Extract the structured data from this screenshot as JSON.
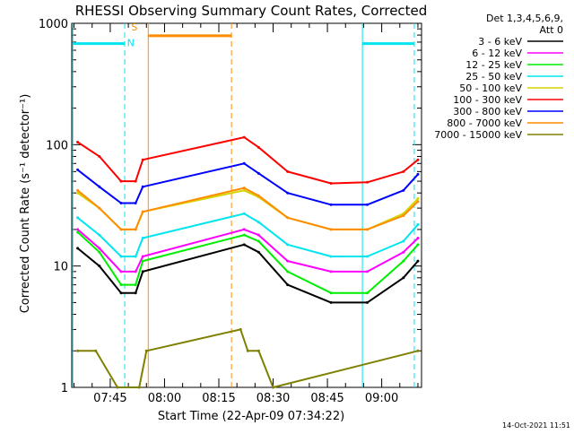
{
  "chart_data": {
    "type": "line",
    "title": "RHESSI Observing Summary Count Rates, Corrected",
    "xlabel": "Start Time (22-Apr-09 07:34:22)",
    "ylabel": "Corrected Count Rate (s⁻¹ detector⁻¹)",
    "y_scale": "log",
    "ylim": [
      1,
      1000
    ],
    "xlim": [
      "07:34:22",
      "09:11:00"
    ],
    "x_ticks": [
      "07:45",
      "08:00",
      "08:15",
      "08:30",
      "08:45",
      "09:00"
    ],
    "y_ticks": [
      "1",
      "10",
      "100",
      "1000"
    ],
    "legend_header": [
      "Det 1,3,4,5,6,9,",
      "Att 0"
    ],
    "legend_position": "top-right",
    "footer_date": "14-Oct-2021 11:51",
    "markers": [
      {
        "label": "N",
        "color": "#00e5ee"
      },
      {
        "label": "S",
        "color": "#ff8c00"
      }
    ],
    "colors": {
      "background": "#ffffff",
      "axes": "#000000",
      "night": "#00e5ee",
      "saa": "#ff8c00"
    },
    "series": [
      {
        "name": "3 - 6 keV",
        "color": "#000000",
        "x": [
          "07:36",
          "07:42",
          "07:48",
          "07:52",
          "07:54",
          "08:22",
          "08:26",
          "08:34",
          "08:46",
          "08:56",
          "09:06",
          "09:10"
        ],
        "y": [
          14,
          10,
          6,
          6,
          9,
          15,
          13,
          7,
          5,
          5,
          8,
          11
        ]
      },
      {
        "name": "6 - 12 keV",
        "color": "#ff00ff",
        "x": [
          "07:36",
          "07:42",
          "07:48",
          "07:52",
          "07:54",
          "08:22",
          "08:26",
          "08:34",
          "08:46",
          "08:56",
          "09:06",
          "09:10"
        ],
        "y": [
          20,
          14,
          9,
          9,
          12,
          20,
          18,
          11,
          9,
          9,
          13,
          17
        ]
      },
      {
        "name": "12 - 25 keV",
        "color": "#00ee00",
        "x": [
          "07:36",
          "07:42",
          "07:48",
          "07:52",
          "07:54",
          "08:22",
          "08:26",
          "08:34",
          "08:46",
          "08:56",
          "09:06",
          "09:10"
        ],
        "y": [
          19,
          13,
          7,
          7,
          11,
          18,
          16,
          9,
          6,
          6,
          11,
          15
        ]
      },
      {
        "name": "25 - 50 keV",
        "color": "#00e5ee",
        "x": [
          "07:36",
          "07:42",
          "07:48",
          "07:52",
          "07:54",
          "08:22",
          "08:26",
          "08:34",
          "08:46",
          "08:56",
          "09:06",
          "09:10"
        ],
        "y": [
          25,
          18,
          12,
          12,
          17,
          27,
          23,
          15,
          12,
          12,
          16,
          22
        ]
      },
      {
        "name": "50 - 100 keV",
        "color": "#d4d400",
        "x": [
          "07:36",
          "07:42",
          "07:48",
          "07:52",
          "07:54",
          "08:22",
          "08:26",
          "08:34",
          "08:46",
          "08:56",
          "09:06",
          "09:10"
        ],
        "y": [
          40,
          30,
          20,
          20,
          28,
          42,
          37,
          25,
          20,
          20,
          27,
          36
        ]
      },
      {
        "name": "100 - 300 keV",
        "color": "#ff0000",
        "x": [
          "07:36",
          "07:42",
          "07:48",
          "07:52",
          "07:54",
          "08:22",
          "08:26",
          "08:34",
          "08:46",
          "08:56",
          "09:06",
          "09:10"
        ],
        "y": [
          105,
          80,
          50,
          50,
          75,
          115,
          95,
          60,
          48,
          49,
          60,
          75
        ]
      },
      {
        "name": "300 - 800 keV",
        "color": "#0000ff",
        "x": [
          "07:36",
          "07:42",
          "07:48",
          "07:52",
          "07:54",
          "08:22",
          "08:26",
          "08:34",
          "08:46",
          "08:56",
          "09:06",
          "09:10"
        ],
        "y": [
          62,
          45,
          33,
          33,
          45,
          70,
          58,
          40,
          32,
          32,
          42,
          57
        ]
      },
      {
        "name": "800 - 7000 keV",
        "color": "#ff8c00",
        "x": [
          "07:36",
          "07:42",
          "07:48",
          "07:52",
          "07:54",
          "08:22",
          "08:26",
          "08:34",
          "08:46",
          "08:56",
          "09:06",
          "09:10"
        ],
        "y": [
          42,
          30,
          20,
          20,
          28,
          44,
          38,
          25,
          20,
          20,
          26,
          34
        ]
      },
      {
        "name": "7000 - 15000 keV",
        "color": "#808000",
        "x": [
          "07:36",
          "07:41",
          "07:47",
          "07:53",
          "07:55",
          "08:21",
          "08:23",
          "08:26",
          "08:30",
          "09:10"
        ],
        "y": [
          2,
          2,
          1,
          1,
          2,
          3,
          2,
          2,
          1,
          2
        ]
      }
    ]
  }
}
